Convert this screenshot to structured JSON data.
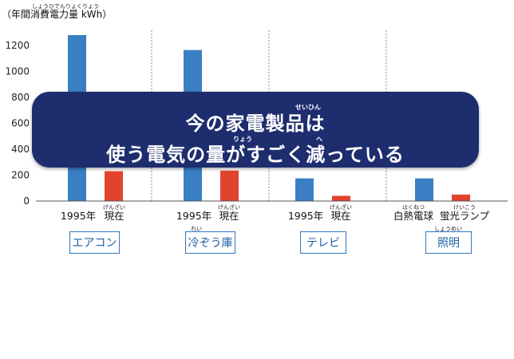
{
  "chart_data": {
    "type": "bar",
    "ylabel": "（年間消費電力量 kWh）",
    "ylabel_furigana": "しょうひでんりょくりょう",
    "ylim": [
      0,
      1400
    ],
    "yticks": [
      0,
      200,
      400,
      600,
      800,
      1000,
      1200
    ],
    "grid": false,
    "groups": [
      {
        "appliance": "エアコン",
        "appliance_furigana": "",
        "labels": [
          "1995年",
          "現在"
        ],
        "label_furigana": [
          "",
          "げんざい"
        ],
        "values": [
          1280,
          230
        ],
        "colors": [
          "#3a7fc4",
          "#e2432e"
        ]
      },
      {
        "appliance": "冷ぞう庫",
        "appliance_furigana": "れい",
        "labels": [
          "1995年",
          "現在"
        ],
        "label_furigana": [
          "",
          "げんざい"
        ],
        "values": [
          1165,
          235
        ],
        "colors": [
          "#3a7fc4",
          "#e2432e"
        ]
      },
      {
        "appliance": "テレビ",
        "appliance_furigana": "",
        "labels": [
          "1995年",
          "現在"
        ],
        "label_furigana": [
          "",
          "げんざい"
        ],
        "values": [
          175,
          40
        ],
        "colors": [
          "#3a7fc4",
          "#e2432e"
        ]
      },
      {
        "appliance": "照明",
        "appliance_furigana": "しょうめい",
        "labels": [
          "白熱電球",
          "蛍光ランプ"
        ],
        "label_furigana": [
          "はくねつ",
          "けいこう"
        ],
        "values": [
          175,
          50
        ],
        "colors": [
          "#3a7fc4",
          "#e2432e"
        ]
      }
    ]
  },
  "banner": {
    "line1": "今の家電製品は",
    "line2": "使う電気の量がすごく減っている",
    "furigana_seihin": "せいひん",
    "furigana_ryou": "りょう",
    "furigana_he": "へ"
  }
}
